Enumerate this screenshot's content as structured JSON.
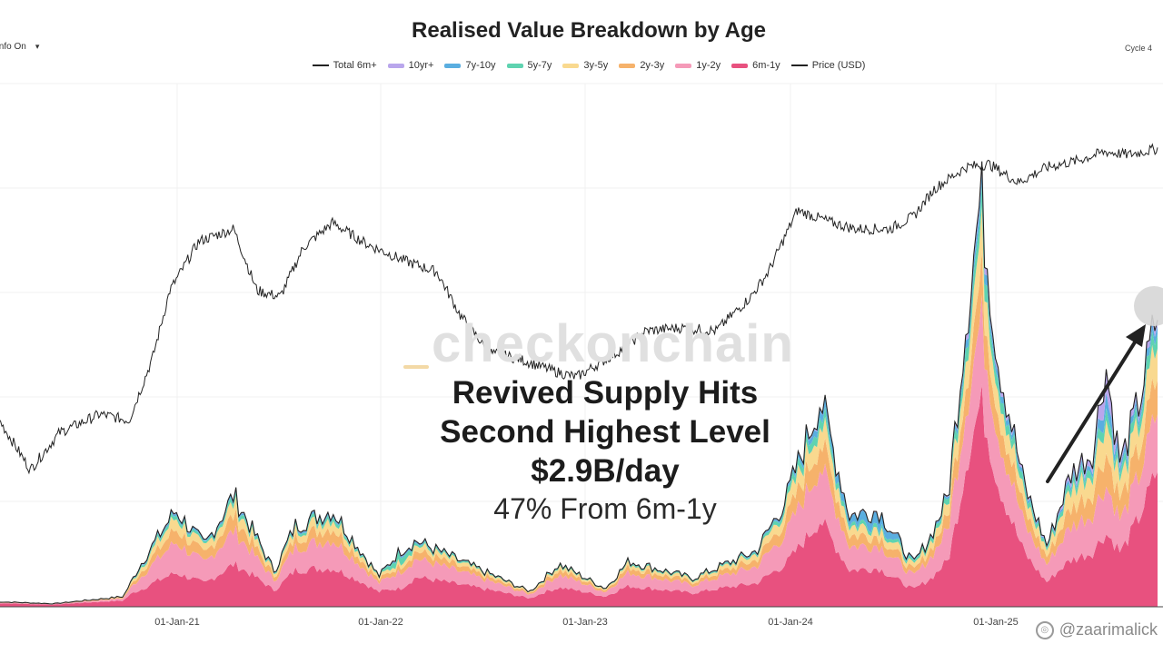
{
  "header": {
    "title": "Realised Value Breakdown by Age",
    "info_toggle": "Info On",
    "info_caret": "▾",
    "cycle_label": "Cycle 4"
  },
  "annotation": {
    "line1": "Revived Supply Hits",
    "line2": "Second Highest Level",
    "line3": "$2.9B/day",
    "line4": "47% From 6m-1y"
  },
  "watermark": "checkonchain",
  "credit": "@zaarimalick",
  "colors": {
    "6m-1y": "#e8517f",
    "1y-2y": "#f59ab8",
    "2y-3y": "#f6b26b",
    "3y-5y": "#f9d98f",
    "5y-7y": "#5fd3b0",
    "7y-10y": "#5aaee0",
    "10yr+": "#b9a6ec",
    "total": "#222222",
    "price": "#222222",
    "arrow": "#222222"
  },
  "chart_data": {
    "type": "area",
    "title": "Realised Value Breakdown by Age",
    "xlabel": "",
    "ylabel": "",
    "x_range": [
      "2020-01-01",
      "2025-08-31"
    ],
    "x_ticks": [
      "01-Jan-21",
      "01-Jan-22",
      "01-Jan-23",
      "01-Jan-24",
      "01-Jan-25"
    ],
    "legend": [
      "Total 6m+",
      "10yr+",
      "7y-10y",
      "5y-7y",
      "3y-5y",
      "2y-3y",
      "1y-2y",
      "6m-1y",
      "Price (USD)"
    ],
    "legend_position": "top-center",
    "stack_order": [
      "6m-1y",
      "1y-2y",
      "2y-3y",
      "3y-5y",
      "5y-7y",
      "7y-10y",
      "10yr+"
    ],
    "value_units": "USD billions per day (relative scale, values estimated)",
    "price_units": "USD (relative scale, values estimated)",
    "series_keyframes": [
      {
        "t": 0.0,
        "total": 0.05,
        "s": [
          0.7,
          0.15,
          0.06,
          0.05,
          0.02,
          0.01,
          0.01
        ]
      },
      {
        "t": 0.05,
        "total": 0.03,
        "s": [
          0.7,
          0.15,
          0.06,
          0.05,
          0.02,
          0.01,
          0.01
        ]
      },
      {
        "t": 0.11,
        "total": 0.1,
        "s": [
          0.6,
          0.22,
          0.08,
          0.06,
          0.02,
          0.01,
          0.01
        ]
      },
      {
        "t": 0.125,
        "total": 0.42,
        "s": [
          0.4,
          0.3,
          0.12,
          0.1,
          0.04,
          0.02,
          0.02
        ]
      },
      {
        "t": 0.155,
        "total": 0.95,
        "s": [
          0.35,
          0.32,
          0.14,
          0.12,
          0.04,
          0.02,
          0.01
        ]
      },
      {
        "t": 0.18,
        "total": 0.6,
        "s": [
          0.38,
          0.32,
          0.14,
          0.1,
          0.03,
          0.02,
          0.01
        ]
      },
      {
        "t": 0.205,
        "total": 1.1,
        "s": [
          0.38,
          0.3,
          0.14,
          0.11,
          0.04,
          0.02,
          0.01
        ]
      },
      {
        "t": 0.24,
        "total": 0.35,
        "s": [
          0.45,
          0.28,
          0.12,
          0.09,
          0.03,
          0.02,
          0.01
        ]
      },
      {
        "t": 0.258,
        "total": 0.8,
        "s": [
          0.45,
          0.28,
          0.12,
          0.09,
          0.03,
          0.02,
          0.01
        ]
      },
      {
        "t": 0.29,
        "total": 0.95,
        "s": [
          0.4,
          0.3,
          0.13,
          0.1,
          0.04,
          0.02,
          0.01
        ]
      },
      {
        "t": 0.33,
        "total": 0.3,
        "s": [
          0.48,
          0.28,
          0.11,
          0.08,
          0.03,
          0.01,
          0.01
        ]
      },
      {
        "t": 0.348,
        "total": 0.55,
        "s": [
          0.32,
          0.3,
          0.1,
          0.08,
          0.15,
          0.03,
          0.02
        ]
      },
      {
        "t": 0.362,
        "total": 0.65,
        "s": [
          0.45,
          0.28,
          0.12,
          0.09,
          0.03,
          0.02,
          0.01
        ]
      },
      {
        "t": 0.4,
        "total": 0.45,
        "s": [
          0.48,
          0.28,
          0.11,
          0.08,
          0.03,
          0.01,
          0.01
        ]
      },
      {
        "t": 0.46,
        "total": 0.15,
        "s": [
          0.55,
          0.25,
          0.1,
          0.06,
          0.02,
          0.01,
          0.01
        ]
      },
      {
        "t": 0.485,
        "total": 0.42,
        "s": [
          0.45,
          0.3,
          0.12,
          0.08,
          0.03,
          0.01,
          0.01
        ]
      },
      {
        "t": 0.525,
        "total": 0.18,
        "s": [
          0.55,
          0.25,
          0.1,
          0.06,
          0.02,
          0.01,
          0.01
        ]
      },
      {
        "t": 0.545,
        "total": 0.45,
        "s": [
          0.45,
          0.3,
          0.12,
          0.08,
          0.03,
          0.01,
          0.01
        ]
      },
      {
        "t": 0.6,
        "total": 0.28,
        "s": [
          0.48,
          0.28,
          0.11,
          0.08,
          0.03,
          0.01,
          0.01
        ]
      },
      {
        "t": 0.655,
        "total": 0.55,
        "s": [
          0.42,
          0.3,
          0.12,
          0.1,
          0.03,
          0.02,
          0.01
        ]
      },
      {
        "t": 0.68,
        "total": 1.05,
        "s": [
          0.4,
          0.28,
          0.13,
          0.11,
          0.05,
          0.02,
          0.01
        ]
      },
      {
        "t": 0.71,
        "total": 2.05,
        "s": [
          0.42,
          0.26,
          0.12,
          0.1,
          0.05,
          0.04,
          0.01
        ]
      },
      {
        "t": 0.735,
        "total": 0.9,
        "s": [
          0.4,
          0.26,
          0.12,
          0.1,
          0.04,
          0.07,
          0.01
        ]
      },
      {
        "t": 0.76,
        "total": 0.95,
        "s": [
          0.4,
          0.24,
          0.1,
          0.09,
          0.04,
          0.12,
          0.01
        ]
      },
      {
        "t": 0.79,
        "total": 0.42,
        "s": [
          0.4,
          0.3,
          0.12,
          0.1,
          0.05,
          0.02,
          0.01
        ]
      },
      {
        "t": 0.805,
        "total": 0.7,
        "s": [
          0.4,
          0.3,
          0.12,
          0.1,
          0.05,
          0.02,
          0.01
        ]
      },
      {
        "t": 0.82,
        "total": 1.1,
        "s": [
          0.42,
          0.28,
          0.12,
          0.1,
          0.05,
          0.02,
          0.01
        ]
      },
      {
        "t": 0.835,
        "total": 2.8,
        "s": [
          0.5,
          0.2,
          0.1,
          0.1,
          0.05,
          0.03,
          0.02
        ]
      },
      {
        "t": 0.848,
        "total": 4.05,
        "s": [
          0.5,
          0.2,
          0.1,
          0.1,
          0.05,
          0.03,
          0.02
        ]
      },
      {
        "t": 0.862,
        "total": 2.5,
        "s": [
          0.5,
          0.2,
          0.1,
          0.1,
          0.05,
          0.03,
          0.02
        ]
      },
      {
        "t": 0.885,
        "total": 1.2,
        "s": [
          0.45,
          0.23,
          0.12,
          0.1,
          0.05,
          0.03,
          0.02
        ]
      },
      {
        "t": 0.905,
        "total": 0.6,
        "s": [
          0.4,
          0.28,
          0.13,
          0.11,
          0.04,
          0.02,
          0.02
        ]
      },
      {
        "t": 0.925,
        "total": 1.3,
        "s": [
          0.35,
          0.25,
          0.14,
          0.14,
          0.05,
          0.03,
          0.04
        ]
      },
      {
        "t": 0.945,
        "total": 1.55,
        "s": [
          0.35,
          0.25,
          0.14,
          0.14,
          0.05,
          0.03,
          0.04
        ]
      },
      {
        "t": 0.955,
        "total": 2.4,
        "s": [
          0.3,
          0.2,
          0.14,
          0.14,
          0.05,
          0.07,
          0.1
        ]
      },
      {
        "t": 0.968,
        "total": 1.4,
        "s": [
          0.38,
          0.22,
          0.14,
          0.13,
          0.05,
          0.04,
          0.04
        ]
      },
      {
        "t": 0.985,
        "total": 2.05,
        "s": [
          0.44,
          0.2,
          0.13,
          0.12,
          0.05,
          0.03,
          0.03
        ]
      },
      {
        "t": 1.0,
        "total": 2.9,
        "s": [
          0.47,
          0.2,
          0.12,
          0.11,
          0.05,
          0.03,
          0.02
        ]
      }
    ],
    "price_keyframes": [
      {
        "t": 0.0,
        "v": 0.3
      },
      {
        "t": 0.03,
        "v": 0.12
      },
      {
        "t": 0.055,
        "v": 0.24
      },
      {
        "t": 0.09,
        "v": 0.3
      },
      {
        "t": 0.115,
        "v": 0.28
      },
      {
        "t": 0.135,
        "v": 0.48
      },
      {
        "t": 0.15,
        "v": 0.7
      },
      {
        "t": 0.175,
        "v": 0.86
      },
      {
        "t": 0.205,
        "v": 0.9
      },
      {
        "t": 0.225,
        "v": 0.7
      },
      {
        "t": 0.245,
        "v": 0.68
      },
      {
        "t": 0.265,
        "v": 0.84
      },
      {
        "t": 0.29,
        "v": 0.92
      },
      {
        "t": 0.32,
        "v": 0.85
      },
      {
        "t": 0.35,
        "v": 0.8
      },
      {
        "t": 0.38,
        "v": 0.76
      },
      {
        "t": 0.4,
        "v": 0.62
      },
      {
        "t": 0.425,
        "v": 0.5
      },
      {
        "t": 0.45,
        "v": 0.48
      },
      {
        "t": 0.48,
        "v": 0.44
      },
      {
        "t": 0.5,
        "v": 0.42
      },
      {
        "t": 0.535,
        "v": 0.5
      },
      {
        "t": 0.56,
        "v": 0.57
      },
      {
        "t": 0.59,
        "v": 0.58
      },
      {
        "t": 0.62,
        "v": 0.57
      },
      {
        "t": 0.65,
        "v": 0.68
      },
      {
        "t": 0.665,
        "v": 0.76
      },
      {
        "t": 0.69,
        "v": 0.96
      },
      {
        "t": 0.72,
        "v": 0.92
      },
      {
        "t": 0.74,
        "v": 0.9
      },
      {
        "t": 0.77,
        "v": 0.9
      },
      {
        "t": 0.79,
        "v": 0.94
      },
      {
        "t": 0.808,
        "v": 1.03
      },
      {
        "t": 0.835,
        "v": 1.1
      },
      {
        "t": 0.855,
        "v": 1.11
      },
      {
        "t": 0.88,
        "v": 1.05
      },
      {
        "t": 0.905,
        "v": 1.1
      },
      {
        "t": 0.93,
        "v": 1.12
      },
      {
        "t": 0.955,
        "v": 1.15
      },
      {
        "t": 0.975,
        "v": 1.14
      },
      {
        "t": 1.0,
        "v": 1.16
      }
    ]
  }
}
